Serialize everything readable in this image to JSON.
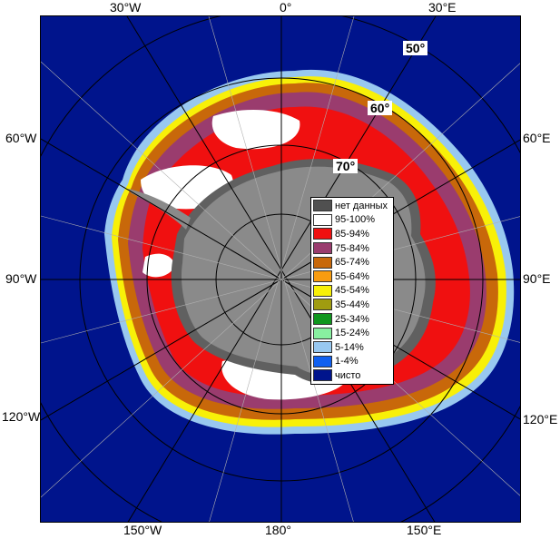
{
  "map": {
    "colors": {
      "ocean": "#00148c",
      "land": "#8a8a8a",
      "land_dark": "#606060",
      "grid": "#000000"
    },
    "top_labels": [
      "30°W",
      "0°",
      "30°E"
    ],
    "bottom_labels": [
      "150°W",
      "180°",
      "150°E"
    ],
    "left_labels": [
      "60°W",
      "90°W",
      "120°W"
    ],
    "right_labels": [
      "60°E",
      "90°E",
      "120°E"
    ],
    "lat_labels": [
      "50°",
      "60°",
      "70°"
    ]
  },
  "legend": {
    "items": [
      {
        "label": "нет данных",
        "color": "#505050"
      },
      {
        "label": "95-100%",
        "color": "#ffffff"
      },
      {
        "label": "85-94%",
        "color": "#f01010"
      },
      {
        "label": "75-84%",
        "color": "#9a3c6e"
      },
      {
        "label": "65-74%",
        "color": "#c8680a"
      },
      {
        "label": "55-64%",
        "color": "#f89c10"
      },
      {
        "label": "45-54%",
        "color": "#f8f008"
      },
      {
        "label": "35-44%",
        "color": "#a09c10"
      },
      {
        "label": "25-34%",
        "color": "#10961e"
      },
      {
        "label": "15-24%",
        "color": "#88f0a0"
      },
      {
        "label": "5-14%",
        "color": "#98c8f0"
      },
      {
        "label": "1-4%",
        "color": "#1060f0"
      },
      {
        "label": "чисто",
        "color": "#00148c"
      }
    ]
  }
}
